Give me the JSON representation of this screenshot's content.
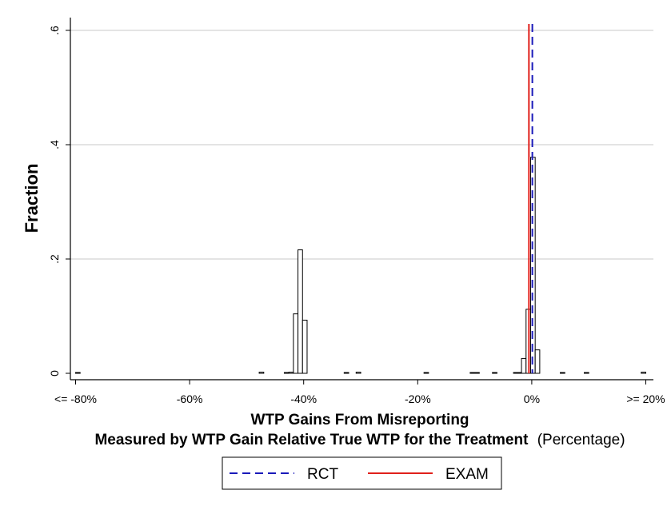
{
  "chart_data": {
    "type": "bar",
    "ylabel": "Fraction",
    "xlabel_line1": "WTP Gains From Misreporting",
    "xlabel_line2_bold": "Measured by WTP Gain Relative True WTP for the Treatment",
    "xlabel_line2_normal": "(Percentage)",
    "x_range": [
      -82,
      21
    ],
    "ylim": [
      0,
      0.62
    ],
    "y_ticks": [
      0,
      0.2,
      0.4,
      0.6
    ],
    "y_tick_labels": [
      "0",
      ".2",
      ".4",
      ".6"
    ],
    "x_ticks": [
      -80,
      -60,
      -40,
      -20,
      0,
      20
    ],
    "x_tick_labels": [
      "<= -80%",
      "-60%",
      "-40%",
      "-20%",
      "0%",
      ">= 20%"
    ],
    "grid": true,
    "bin_width": 0.8,
    "bins": [
      {
        "x": -79.6,
        "y": 0.001
      },
      {
        "x": -47.4,
        "y": 0.002
      },
      {
        "x": -43.0,
        "y": 0.001
      },
      {
        "x": -42.2,
        "y": 0.002
      },
      {
        "x": -41.4,
        "y": 0.104
      },
      {
        "x": -40.6,
        "y": 0.216
      },
      {
        "x": -39.8,
        "y": 0.093
      },
      {
        "x": -32.5,
        "y": 0.001
      },
      {
        "x": -30.4,
        "y": 0.002
      },
      {
        "x": -18.5,
        "y": 0.001
      },
      {
        "x": -10.4,
        "y": 0.001
      },
      {
        "x": -9.6,
        "y": 0.001
      },
      {
        "x": -6.5,
        "y": 0.001
      },
      {
        "x": -2.8,
        "y": 0.001
      },
      {
        "x": -2.0,
        "y": 0.001
      },
      {
        "x": -1.4,
        "y": 0.026
      },
      {
        "x": -0.6,
        "y": 0.112
      },
      {
        "x": 0.2,
        "y": 0.378
      },
      {
        "x": 1.0,
        "y": 0.041
      },
      {
        "x": 5.4,
        "y": 0.001
      },
      {
        "x": 9.6,
        "y": 0.001
      },
      {
        "x": 19.6,
        "y": 0.002
      }
    ],
    "reference_lines": [
      {
        "name": "RCT",
        "x": 0.1,
        "color": "#1a1aba",
        "style": "dashed"
      },
      {
        "name": "EXAM",
        "x": -0.5,
        "color": "#e0201b",
        "style": "solid"
      }
    ],
    "legend_position": "bottom-center",
    "legend": [
      {
        "label": "RCT",
        "color": "#1a1aba",
        "style": "dashed"
      },
      {
        "label": "EXAM",
        "color": "#e0201b",
        "style": "solid"
      }
    ]
  }
}
